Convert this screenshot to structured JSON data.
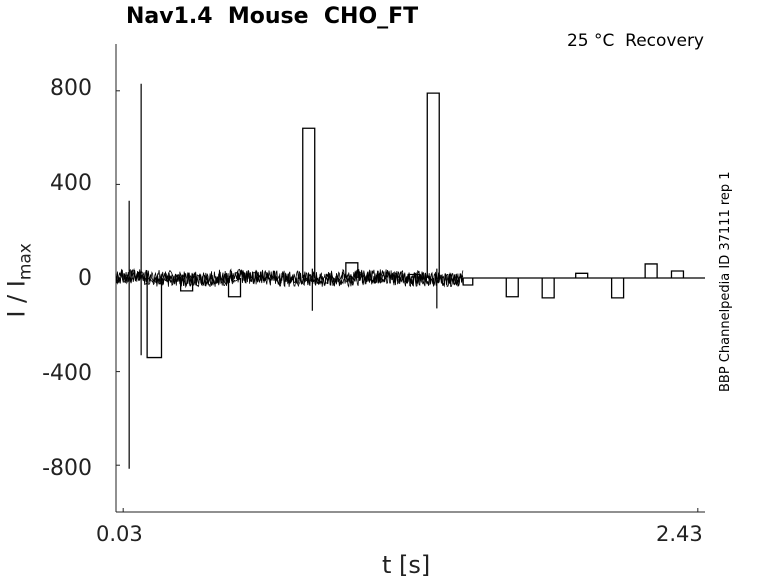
{
  "chart_data": {
    "type": "line",
    "title": "Nav1.4  Mouse  CHO_FT",
    "subtitle": "25 °C  Recovery",
    "side_label": "BBP Channelpedia ID 37111 rep 1",
    "xlabel": "t [s]",
    "ylabel_main": "I / I",
    "ylabel_sub": "max",
    "xticks": [
      "0.03",
      "2.43"
    ],
    "yticks": [
      "800",
      "400",
      "0",
      "-400",
      "-800"
    ],
    "xlim": [
      0.0,
      2.46
    ],
    "ylim": [
      -1000,
      1000
    ],
    "noise_region": [
      0.0,
      1.45
    ],
    "spikes": [
      {
        "x": 0.055,
        "y_min": -815,
        "y_max": 330
      },
      {
        "x": 0.105,
        "y_min": -330,
        "y_max": 830
      },
      {
        "x": 0.82,
        "y_min": -140,
        "y_max": 40
      },
      {
        "x": 1.34,
        "y_min": -130,
        "y_max": 40
      }
    ],
    "pulses": [
      {
        "x_start": 0.13,
        "x_end": 0.19,
        "y": -340
      },
      {
        "x_start": 0.27,
        "x_end": 0.32,
        "y": -55
      },
      {
        "x_start": 0.47,
        "x_end": 0.52,
        "y": -80
      },
      {
        "x_start": 0.78,
        "x_end": 0.83,
        "y": 640
      },
      {
        "x_start": 0.96,
        "x_end": 1.01,
        "y": 65
      },
      {
        "x_start": 1.22,
        "x_end": 1.27,
        "y": 15
      },
      {
        "x_start": 1.3,
        "x_end": 1.35,
        "y": 790
      },
      {
        "x_start": 1.45,
        "x_end": 1.49,
        "y": -30
      },
      {
        "x_start": 1.63,
        "x_end": 1.68,
        "y": -80
      },
      {
        "x_start": 1.78,
        "x_end": 1.83,
        "y": -85
      },
      {
        "x_start": 1.92,
        "x_end": 1.97,
        "y": 20
      },
      {
        "x_start": 2.07,
        "x_end": 2.12,
        "y": -85
      },
      {
        "x_start": 2.21,
        "x_end": 2.26,
        "y": 60
      },
      {
        "x_start": 2.32,
        "x_end": 2.37,
        "y": 30
      }
    ]
  }
}
